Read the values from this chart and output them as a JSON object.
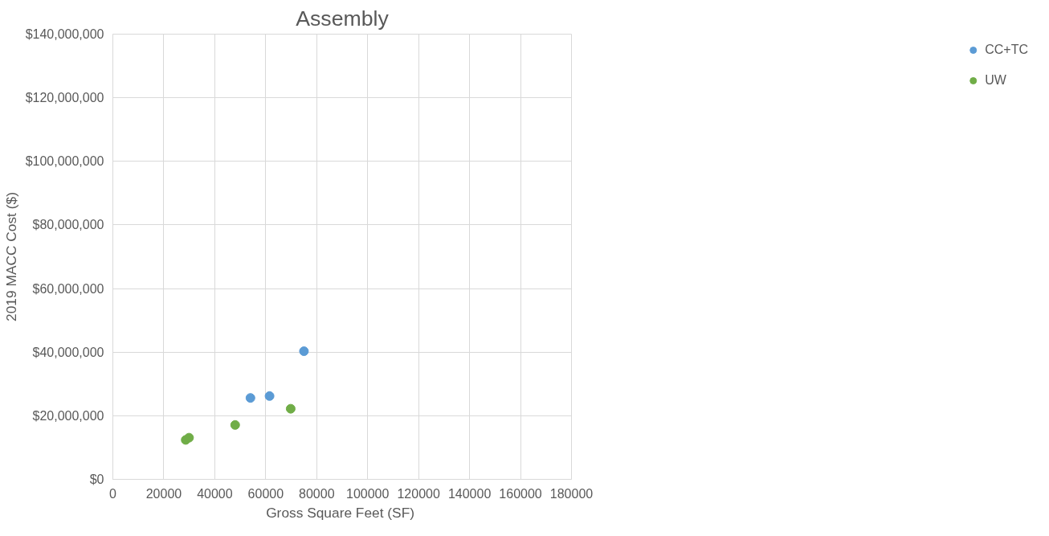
{
  "chart_data": {
    "type": "scatter",
    "title": "Assembly",
    "xlabel": "Gross Square Feet  (SF)",
    "ylabel": "2019 MACC Cost ($)",
    "series": [
      {
        "name": "CC+TC",
        "color": "#5b9bd5",
        "x": [
          54000,
          61500,
          75000
        ],
        "values": [
          25600000,
          26200000,
          40300000
        ]
      },
      {
        "name": "UW",
        "color": "#70ad47",
        "x": [
          28600,
          29900,
          48000,
          69800
        ],
        "values": [
          12400000,
          13100000,
          17100000,
          22200000
        ]
      }
    ],
    "xlim": [
      0,
      180000
    ],
    "xticks": [
      0,
      20000,
      40000,
      60000,
      80000,
      100000,
      120000,
      140000,
      160000,
      180000
    ],
    "ylim": [
      0,
      140000000
    ],
    "yticks": [
      {
        "value": 0,
        "label": "$0"
      },
      {
        "value": 20000000,
        "label": "$20,000,000"
      },
      {
        "value": 40000000,
        "label": "$40,000,000"
      },
      {
        "value": 60000000,
        "label": "$60,000,000"
      },
      {
        "value": 80000000,
        "label": "$80,000,000"
      },
      {
        "value": 100000000,
        "label": "$100,000,000"
      },
      {
        "value": 120000000,
        "label": "$120,000,000"
      },
      {
        "value": 140000000,
        "label": "$140,000,000"
      }
    ],
    "grid": true,
    "legend": "right",
    "marker": "circle"
  }
}
